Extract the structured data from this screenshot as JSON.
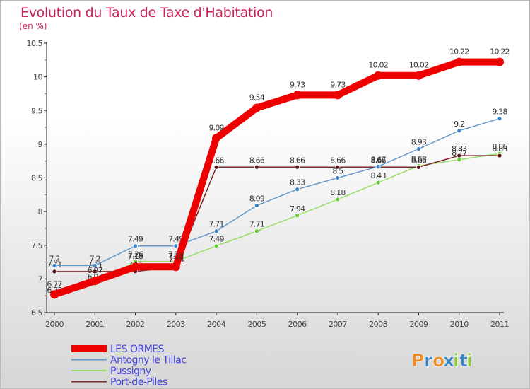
{
  "title": "Evolution du Taux de Taxe d'Habitation",
  "subtitle": "(en %)",
  "brand": "Proxiti",
  "colors": {
    "title": "#cc2255",
    "axis_text": "#444444",
    "brand_letters": [
      "#f08c1e",
      "#3a86c8",
      "#f08c1e",
      "#3a86c8",
      "#8cc832",
      "#3a86c8",
      "#8cc832"
    ]
  },
  "chart_data": {
    "type": "line",
    "x": [
      "2000",
      "2001",
      "2002",
      "2003",
      "2004",
      "2005",
      "2006",
      "2007",
      "2008",
      "2009",
      "2010",
      "2011"
    ],
    "ylim": [
      6.5,
      10.5
    ],
    "yticks": [
      "6.5",
      "7",
      "7.5",
      "8",
      "8.5",
      "9",
      "9.5",
      "10",
      "10.5"
    ],
    "grid": false,
    "legend_position": "bottom-left",
    "series": [
      {
        "name": "Pussigny",
        "color": "#99dd66",
        "marker": "#66cc33",
        "values": [
          6.73,
          6.93,
          7.26,
          7.26,
          7.49,
          7.71,
          7.94,
          8.18,
          8.43,
          8.68,
          8.77,
          8.86
        ],
        "labels": [
          "6.73",
          "6.93",
          "7.26",
          "7.26",
          "7.49",
          "7.71",
          "7.94",
          "8.18",
          "8.43",
          "8.68",
          "8.77",
          "8.86"
        ]
      },
      {
        "name": "Port-de-Piles",
        "color": "#7a2a2a",
        "marker": "#5a1515",
        "values": [
          7.11,
          7.11,
          7.11,
          7.18,
          8.66,
          8.66,
          8.66,
          8.66,
          8.66,
          8.66,
          8.83,
          8.83
        ],
        "labels": [
          "7.11",
          "7.11",
          "7.11",
          "7.18",
          "8.66",
          "8.66",
          "8.66",
          "8.66",
          "8.66",
          "8.66",
          "8.83",
          "8.83"
        ]
      },
      {
        "name": "Antogny le Tillac",
        "color": "#6699cc",
        "marker": "#3a86c8",
        "values": [
          7.2,
          7.2,
          7.49,
          7.49,
          7.71,
          8.09,
          8.33,
          8.5,
          8.67,
          8.93,
          9.2,
          9.38
        ],
        "labels": [
          "7.2",
          "7.2",
          "7.49",
          "7.49",
          "7.71",
          "8.09",
          "8.33",
          "8.5",
          "8.67",
          "8.93",
          "9.2",
          "9.38"
        ]
      },
      {
        "name": "LES ORMES",
        "color": "#ee0000",
        "marker": "#ee0000",
        "values": [
          6.77,
          6.97,
          7.18,
          7.18,
          9.09,
          9.54,
          9.73,
          9.73,
          10.02,
          10.02,
          10.22,
          10.22
        ],
        "labels": [
          "6.77",
          "6.97",
          "7.18",
          "7.18",
          "9.09",
          "9.54",
          "9.73",
          "9.73",
          "10.02",
          "10.02",
          "10.22",
          "10.22"
        ]
      }
    ],
    "legend": [
      "LES ORMES",
      "Antogny le Tillac",
      "Pussigny",
      "Port-de-Piles"
    ]
  }
}
